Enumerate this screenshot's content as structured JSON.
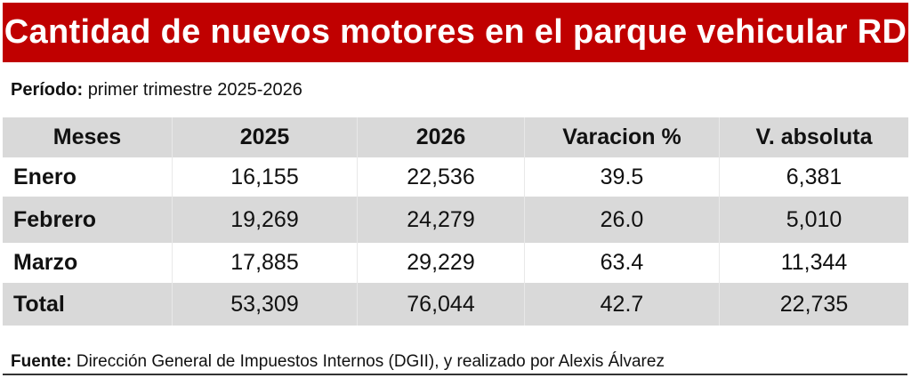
{
  "chart_data": {
    "type": "table",
    "title": "Cantidad de nuevos motores en el parque vehicular RD",
    "period_label": "Período:",
    "period_value": "primer trimestre 2025-2026",
    "columns": [
      "Meses",
      "2025",
      "2026",
      "Varacion %",
      "V. absoluta"
    ],
    "rows": [
      [
        "Enero",
        "16,155",
        "22,536",
        "39.5",
        "6,381"
      ],
      [
        "Febrero",
        "19,269",
        "24,279",
        "26.0",
        "5,010"
      ],
      [
        "Marzo",
        "17,885",
        "29,229",
        "63.4",
        "11,344"
      ],
      [
        "Total",
        "53,309",
        "76,044",
        "42.7",
        "22,735"
      ]
    ],
    "source_label": "Fuente:",
    "source_value": "Dirección General de Impuestos Internos (DGII), y realizado por Alexis Álvarez"
  }
}
